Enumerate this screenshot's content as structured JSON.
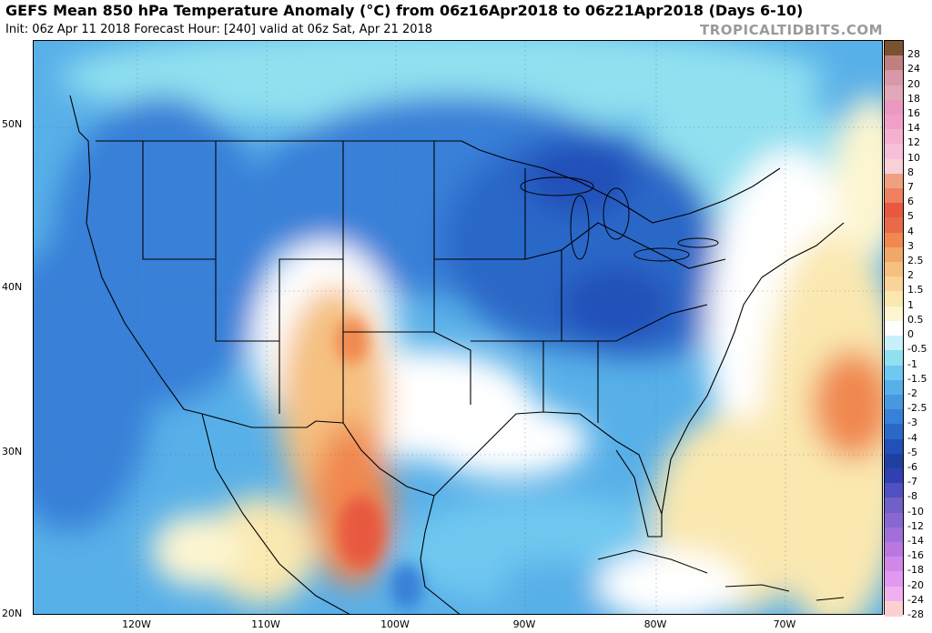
{
  "header": {
    "title": "GEFS Mean 850 hPa Temperature Anomaly (°C) from 06z16Apr2018 to 06z21Apr2018 (Days 6-10)",
    "subtitle": "Init: 06z Apr 11 2018   Forecast Hour: [240]   valid at 06z Sat, Apr 21 2018",
    "brand": "TROPICALTIDBITS.COM"
  },
  "axes": {
    "lat_labels": [
      "50N",
      "40N",
      "30N",
      "20N"
    ],
    "lon_labels": [
      "120W",
      "110W",
      "100W",
      "90W",
      "80W",
      "70W"
    ]
  },
  "colorbar": {
    "labels": [
      "28",
      "24",
      "20",
      "18",
      "16",
      "14",
      "12",
      "10",
      "8",
      "7",
      "6",
      "5",
      "4",
      "3",
      "2.5",
      "2",
      "1.5",
      "1",
      "0.5",
      "0",
      "-0.5",
      "-1",
      "-1.5",
      "-2",
      "-2.5",
      "-3",
      "-4",
      "-5",
      "-6",
      "-7",
      "-8",
      "-10",
      "-12",
      "-14",
      "-16",
      "-18",
      "-20",
      "-24",
      "-28"
    ],
    "colors": [
      "#7a5230",
      "#c08080",
      "#d898a8",
      "#e0a8b8",
      "#ea98c0",
      "#f0a0c8",
      "#f5b0d0",
      "#f8c0d8",
      "#f8d0d8",
      "#f0a080",
      "#f08060",
      "#e85840",
      "#e86a48",
      "#f08850",
      "#f0a868",
      "#f5c080",
      "#f8d498",
      "#fae8b0",
      "#fdf5d0",
      "#ffffff",
      "#c8f0f8",
      "#90e0f0",
      "#70c8f0",
      "#58b0e8",
      "#4898e0",
      "#3880d8",
      "#2c68c8",
      "#2050b8",
      "#2040a0",
      "#3040b0",
      "#5050c0",
      "#7060c8",
      "#8868d0",
      "#a070d8",
      "#b878e0",
      "#d088e8",
      "#e098f0",
      "#f0b0f0",
      "#fcd0d0"
    ]
  }
}
